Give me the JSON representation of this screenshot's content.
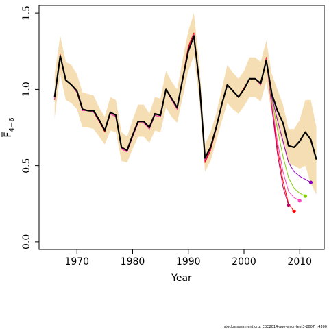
{
  "chart_data": {
    "type": "line",
    "title": "",
    "xlabel": "Year",
    "ylabel": "F̅ 4–6",
    "ylabel_main": "F",
    "ylabel_sub": "4−6",
    "xlim": [
      1963.2,
      2014.4
    ],
    "ylim": [
      -0.05,
      1.55
    ],
    "x_ticks": [
      1970,
      1980,
      1990,
      2000,
      2010
    ],
    "y_ticks": [
      0.0,
      0.5,
      1.0,
      1.5
    ],
    "x_tick_labels": [
      "1970",
      "1980",
      "1990",
      "2000",
      "2010"
    ],
    "y_tick_labels": [
      "0.0",
      "0.5",
      "1.0",
      "1.5"
    ],
    "grid": false,
    "legend": "none",
    "colors": {
      "band": "#f5deb3",
      "main": "#000000",
      "retro": [
        "#ff0000",
        "#c00060",
        "#ff40c0",
        "#80d000",
        "#9000c0"
      ]
    },
    "confidence_band": {
      "years": [
        1966,
        1967,
        1968,
        1969,
        1970,
        1971,
        1972,
        1973,
        1974,
        1975,
        1976,
        1977,
        1978,
        1979,
        1980,
        1981,
        1982,
        1983,
        1984,
        1985,
        1986,
        1987,
        1988,
        1989,
        1990,
        1991,
        1992,
        1993,
        1994,
        1995,
        1996,
        1997,
        1998,
        1999,
        2000,
        2001,
        2002,
        2003,
        2004,
        2005,
        2006,
        2007,
        2008,
        2009,
        2010,
        2011,
        2012,
        2013
      ],
      "upper": [
        1.1,
        1.35,
        1.18,
        1.16,
        1.1,
        0.98,
        0.97,
        0.96,
        0.88,
        0.82,
        0.95,
        0.93,
        0.72,
        0.69,
        0.8,
        0.9,
        0.9,
        0.84,
        0.95,
        0.94,
        1.12,
        1.05,
        1.0,
        1.2,
        1.38,
        1.5,
        1.16,
        0.64,
        0.72,
        0.84,
        1.0,
        1.16,
        1.11,
        1.07,
        1.12,
        1.21,
        1.21,
        1.18,
        1.32,
        1.1,
        1.0,
        0.9,
        0.74,
        0.74,
        0.8,
        0.93,
        0.93,
        0.75
      ],
      "lower": [
        0.81,
        1.1,
        0.93,
        0.91,
        0.87,
        0.75,
        0.75,
        0.74,
        0.69,
        0.64,
        0.73,
        0.72,
        0.53,
        0.52,
        0.61,
        0.69,
        0.69,
        0.65,
        0.73,
        0.72,
        0.88,
        0.82,
        0.78,
        0.95,
        1.12,
        1.22,
        0.93,
        0.46,
        0.53,
        0.66,
        0.79,
        0.91,
        0.87,
        0.84,
        0.89,
        0.95,
        0.95,
        0.92,
        1.05,
        0.84,
        0.74,
        0.64,
        0.51,
        0.5,
        0.48,
        0.5,
        0.38,
        0.31
      ]
    },
    "series": [
      {
        "years": [
          1966,
          1967,
          1968,
          1969,
          1970,
          1971,
          1972,
          1973,
          1974,
          1975,
          1976,
          1977,
          1978,
          1979,
          1980,
          1981,
          1982,
          1983,
          1984,
          1985,
          1986,
          1987,
          1988,
          1989,
          1990,
          1991,
          1992,
          1993,
          1994,
          1995,
          1996,
          1997,
          1998,
          1999,
          2000,
          2001,
          2002,
          2003,
          2004,
          2005,
          2006,
          2007,
          2008,
          2009,
          2010,
          2011,
          2012,
          2013
        ],
        "values": [
          0.95,
          1.22,
          1.06,
          1.03,
          0.99,
          0.87,
          0.86,
          0.86,
          0.8,
          0.73,
          0.85,
          0.83,
          0.62,
          0.6,
          0.7,
          0.79,
          0.79,
          0.75,
          0.84,
          0.83,
          1.0,
          0.94,
          0.88,
          1.07,
          1.25,
          1.35,
          1.04,
          0.55,
          0.62,
          0.75,
          0.9,
          1.03,
          0.99,
          0.95,
          1.0,
          1.07,
          1.07,
          1.04,
          1.19,
          0.97,
          0.86,
          0.78,
          0.63,
          0.62,
          0.66,
          0.72,
          0.67,
          0.54
        ]
      },
      {
        "years": [
          1966,
          1967,
          1968,
          1969,
          1970,
          1971,
          1972,
          1973,
          1974,
          1975,
          1976,
          1977,
          1978,
          1979,
          1980,
          1981,
          1982,
          1983,
          1984,
          1985,
          1986,
          1987,
          1988,
          1989,
          1990,
          1991,
          1992,
          1993,
          1994,
          1995,
          1996,
          1997,
          1998,
          1999,
          2000,
          2001,
          2002,
          2003,
          2004,
          2005,
          2006,
          2007,
          2008,
          2009
        ],
        "values": [
          0.93,
          1.23,
          1.06,
          1.03,
          0.98,
          0.86,
          0.86,
          0.85,
          0.79,
          0.72,
          0.84,
          0.82,
          0.61,
          0.59,
          0.69,
          0.78,
          0.78,
          0.74,
          0.83,
          0.82,
          1.0,
          0.93,
          0.87,
          1.08,
          1.28,
          1.37,
          1.05,
          0.52,
          0.6,
          0.74,
          0.9,
          1.03,
          0.99,
          0.95,
          1.01,
          1.07,
          1.07,
          1.03,
          1.21,
          0.89,
          0.62,
          0.4,
          0.25,
          0.2
        ]
      },
      {
        "years": [
          1966,
          1967,
          1968,
          1969,
          1970,
          1971,
          1972,
          1973,
          1974,
          1975,
          1976,
          1977,
          1978,
          1979,
          1980,
          1981,
          1982,
          1983,
          1984,
          1985,
          1986,
          1987,
          1988,
          1989,
          1990,
          1991,
          1992,
          1993,
          1994,
          1995,
          1996,
          1997,
          1998,
          1999,
          2000,
          2001,
          2002,
          2003,
          2004,
          2005,
          2006,
          2007,
          2008
        ],
        "values": [
          0.94,
          1.22,
          1.06,
          1.03,
          0.98,
          0.86,
          0.86,
          0.85,
          0.79,
          0.73,
          0.84,
          0.82,
          0.61,
          0.59,
          0.69,
          0.78,
          0.78,
          0.74,
          0.83,
          0.82,
          1.0,
          0.93,
          0.87,
          1.07,
          1.27,
          1.36,
          1.04,
          0.53,
          0.61,
          0.74,
          0.9,
          1.03,
          0.99,
          0.95,
          1.0,
          1.07,
          1.07,
          1.03,
          1.2,
          0.88,
          0.58,
          0.36,
          0.24
        ]
      },
      {
        "years": [
          1966,
          1967,
          1968,
          1969,
          1970,
          1971,
          1972,
          1973,
          1974,
          1975,
          1976,
          1977,
          1978,
          1979,
          1980,
          1981,
          1982,
          1983,
          1984,
          1985,
          1986,
          1987,
          1988,
          1989,
          1990,
          1991,
          1992,
          1993,
          1994,
          1995,
          1996,
          1997,
          1998,
          1999,
          2000,
          2001,
          2002,
          2003,
          2004,
          2005,
          2006,
          2007,
          2008,
          2009,
          2010
        ],
        "values": [
          0.94,
          1.22,
          1.06,
          1.03,
          0.98,
          0.86,
          0.86,
          0.85,
          0.8,
          0.73,
          0.84,
          0.82,
          0.61,
          0.59,
          0.69,
          0.78,
          0.78,
          0.74,
          0.83,
          0.82,
          1.0,
          0.93,
          0.87,
          1.07,
          1.26,
          1.36,
          1.04,
          0.54,
          0.61,
          0.74,
          0.9,
          1.03,
          0.99,
          0.95,
          1.0,
          1.07,
          1.07,
          1.03,
          1.2,
          0.9,
          0.66,
          0.46,
          0.33,
          0.29,
          0.27
        ]
      },
      {
        "years": [
          1966,
          1967,
          1968,
          1969,
          1970,
          1971,
          1972,
          1973,
          1974,
          1975,
          1976,
          1977,
          1978,
          1979,
          1980,
          1981,
          1982,
          1983,
          1984,
          1985,
          1986,
          1987,
          1988,
          1989,
          1990,
          1991,
          1992,
          1993,
          1994,
          1995,
          1996,
          1997,
          1998,
          1999,
          2000,
          2001,
          2002,
          2003,
          2004,
          2005,
          2006,
          2007,
          2008,
          2009,
          2010,
          2011
        ],
        "values": [
          0.95,
          1.22,
          1.06,
          1.03,
          0.99,
          0.87,
          0.86,
          0.86,
          0.8,
          0.73,
          0.85,
          0.83,
          0.62,
          0.6,
          0.7,
          0.79,
          0.79,
          0.75,
          0.84,
          0.83,
          1.0,
          0.94,
          0.88,
          1.07,
          1.25,
          1.35,
          1.04,
          0.55,
          0.62,
          0.75,
          0.9,
          1.03,
          0.99,
          0.95,
          1.0,
          1.07,
          1.07,
          1.04,
          1.19,
          0.93,
          0.74,
          0.56,
          0.42,
          0.35,
          0.32,
          0.3
        ]
      },
      {
        "years": [
          1966,
          1967,
          1968,
          1969,
          1970,
          1971,
          1972,
          1973,
          1974,
          1975,
          1976,
          1977,
          1978,
          1979,
          1980,
          1981,
          1982,
          1983,
          1984,
          1985,
          1986,
          1987,
          1988,
          1989,
          1990,
          1991,
          1992,
          1993,
          1994,
          1995,
          1996,
          1997,
          1998,
          1999,
          2000,
          2001,
          2002,
          2003,
          2004,
          2005,
          2006,
          2007,
          2008,
          2009,
          2010,
          2011,
          2012
        ],
        "values": [
          0.95,
          1.22,
          1.06,
          1.03,
          0.99,
          0.87,
          0.86,
          0.86,
          0.8,
          0.73,
          0.85,
          0.83,
          0.62,
          0.6,
          0.7,
          0.79,
          0.79,
          0.75,
          0.84,
          0.83,
          1.0,
          0.94,
          0.88,
          1.07,
          1.25,
          1.35,
          1.04,
          0.55,
          0.62,
          0.75,
          0.9,
          1.03,
          0.99,
          0.95,
          1.0,
          1.07,
          1.07,
          1.04,
          1.19,
          0.95,
          0.8,
          0.66,
          0.52,
          0.46,
          0.43,
          0.41,
          0.39
        ]
      }
    ],
    "footer_text": "stockassessment.org, EBC2014-age-error-test3-2007, r4300"
  }
}
